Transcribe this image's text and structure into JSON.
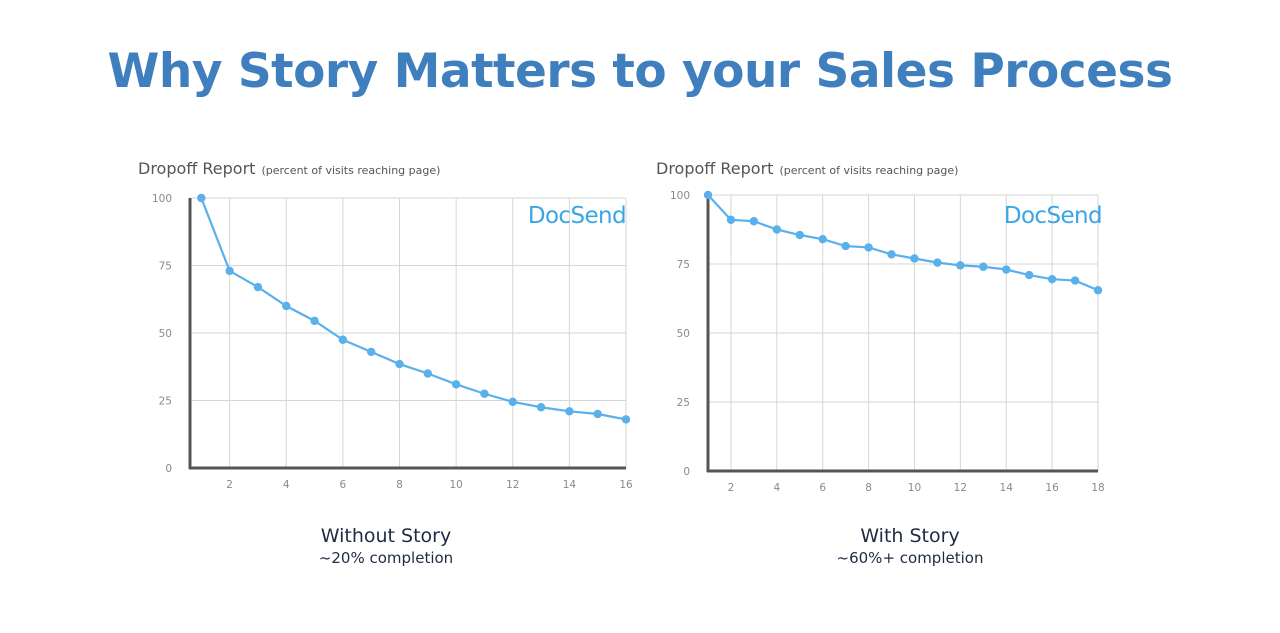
{
  "title": "Why Story Matters to your Sales Process",
  "colors": {
    "title": "#3f7fbe",
    "line": "#5ab0ea",
    "brand": "#3aa6e3",
    "grid": "#d6d6d6",
    "axis": "#555555"
  },
  "chart_data": [
    {
      "type": "line",
      "title": "Dropoff Report",
      "subtitle": "(percent of visits reaching page)",
      "brand": "DocSend",
      "x": [
        1,
        2,
        3,
        4,
        5,
        6,
        7,
        8,
        9,
        10,
        11,
        12,
        13,
        14,
        15,
        16
      ],
      "values": [
        100,
        73,
        67,
        60,
        54.5,
        47.5,
        43,
        38.5,
        35,
        31,
        27.5,
        24.5,
        22.5,
        21,
        20,
        18
      ],
      "xlim": [
        0.6,
        16
      ],
      "ylim": [
        0,
        100
      ],
      "xticks": [
        2,
        4,
        6,
        8,
        10,
        12,
        14,
        16
      ],
      "yticks": [
        0,
        25,
        50,
        75,
        100
      ],
      "grid": true,
      "caption": "Without Story",
      "caption_sub": "~20% completion"
    },
    {
      "type": "line",
      "title": "Dropoff Report",
      "subtitle": "(percent of visits reaching page)",
      "brand": "DocSend",
      "x": [
        1,
        2,
        3,
        4,
        5,
        6,
        7,
        8,
        9,
        10,
        11,
        12,
        13,
        14,
        15,
        16,
        17,
        18
      ],
      "values": [
        100,
        91,
        90.5,
        87.5,
        85.5,
        84,
        81.5,
        81,
        78.5,
        77,
        75.5,
        74.5,
        74,
        73,
        71,
        69.5,
        69,
        65.5
      ],
      "xlim": [
        1,
        18
      ],
      "ylim": [
        0,
        100
      ],
      "xticks": [
        2,
        4,
        6,
        8,
        10,
        12,
        14,
        16,
        18
      ],
      "yticks": [
        0,
        25,
        50,
        75,
        100
      ],
      "grid": true,
      "caption": "With Story",
      "caption_sub": "~60%+ completion"
    }
  ]
}
